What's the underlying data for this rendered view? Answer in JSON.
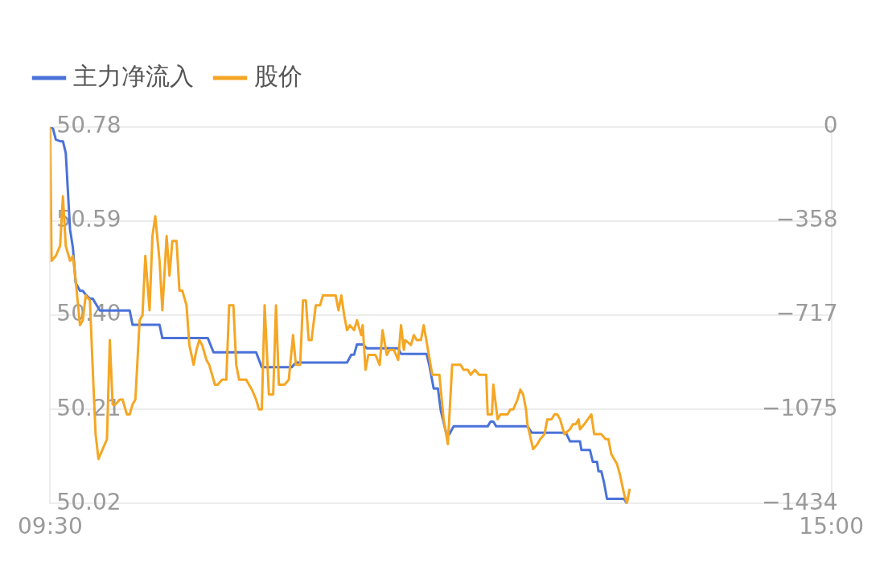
{
  "chart_data": {
    "type": "line",
    "xlim": [
      9.5,
      15
    ],
    "xticks": [
      {
        "value": 9.5,
        "label": "09:30"
      },
      {
        "value": 15,
        "label": "15:00"
      }
    ],
    "ylim": [
      50.02,
      50.78
    ],
    "yticks": [
      {
        "value": 50.02,
        "label": "50.02"
      },
      {
        "value": 50.21,
        "label": "50.21"
      },
      {
        "value": 50.4,
        "label": "50.40"
      },
      {
        "value": 50.59,
        "label": "50.59"
      },
      {
        "value": 50.78,
        "label": "50.78"
      }
    ],
    "y2lim": [
      -1434,
      0
    ],
    "y2ticks": [
      {
        "value": -1434,
        "label": "−1434"
      },
      {
        "value": -1075.5,
        "label": "−1075"
      },
      {
        "value": -717,
        "label": "−717"
      },
      {
        "value": -358.5,
        "label": "−358"
      },
      {
        "value": 0,
        "label": "0"
      }
    ],
    "grid": "y",
    "legend": "top left",
    "series": [
      {
        "name": "主力净流入",
        "color": "#4a72d9",
        "axis": "y2",
        "x": [
          9.5,
          9.52,
          9.54,
          9.57,
          9.59,
          9.61,
          9.64,
          9.66,
          9.68,
          9.71,
          9.73,
          9.75,
          9.78,
          9.8,
          9.82,
          9.85,
          10.06,
          10.08,
          10.27,
          10.29,
          10.61,
          10.65,
          10.95,
          10.99,
          11.2,
          11.23,
          11.59,
          11.62,
          11.64,
          11.66,
          11.7,
          11.73,
          11.95,
          11.97,
          12.15,
          12.17,
          12.2,
          12.23,
          12.25,
          12.29,
          12.31,
          12.34,
          12.58,
          12.6,
          12.62,
          12.64,
          12.86,
          12.89,
          13.13,
          13.16,
          13.23,
          13.24,
          13.3,
          13.32,
          13.35,
          13.36,
          13.38,
          13.4,
          13.42,
          13.54,
          13.56
        ],
        "values": [
          0,
          -6,
          -48,
          -54,
          -54,
          -99,
          -390,
          -459,
          -594,
          -624,
          -624,
          -639,
          -654,
          -654,
          -672,
          -699,
          -699,
          -753,
          -753,
          -804,
          -804,
          -858,
          -858,
          -915,
          -915,
          -897,
          -897,
          -867,
          -867,
          -828,
          -828,
          -843,
          -843,
          -864,
          -864,
          -909,
          -996,
          -996,
          -1080,
          -1170,
          -1170,
          -1140,
          -1140,
          -1122,
          -1122,
          -1140,
          -1140,
          -1164,
          -1164,
          -1197,
          -1197,
          -1230,
          -1230,
          -1275,
          -1275,
          -1311,
          -1311,
          -1356,
          -1416,
          -1416,
          -1434
        ]
      },
      {
        "name": "股价",
        "color": "#f5a623",
        "x": [
          9.5,
          9.51,
          9.54,
          9.57,
          9.59,
          9.61,
          9.64,
          9.66,
          9.68,
          9.71,
          9.73,
          9.75,
          9.78,
          9.8,
          9.82,
          9.84,
          9.87,
          9.9,
          9.92,
          9.94,
          9.96,
          9.99,
          10.01,
          10.04,
          10.06,
          10.08,
          10.1,
          10.13,
          10.15,
          10.17,
          10.2,
          10.22,
          10.24,
          10.27,
          10.29,
          10.32,
          10.34,
          10.36,
          10.39,
          10.41,
          10.43,
          10.46,
          10.48,
          10.51,
          10.53,
          10.55,
          10.57,
          10.6,
          10.62,
          10.64,
          10.66,
          10.68,
          10.71,
          10.74,
          10.76,
          10.79,
          10.81,
          10.83,
          10.88,
          10.9,
          10.92,
          10.95,
          10.97,
          10.99,
          11.01,
          11.04,
          11.07,
          11.09,
          11.11,
          11.13,
          11.15,
          11.18,
          11.21,
          11.23,
          11.26,
          11.28,
          11.3,
          11.32,
          11.34,
          11.37,
          11.4,
          11.42,
          11.51,
          11.53,
          11.55,
          11.57,
          11.59,
          11.61,
          11.64,
          11.66,
          11.69,
          11.7,
          11.72,
          11.74,
          11.79,
          11.82,
          11.84,
          11.87,
          11.89,
          11.92,
          11.95,
          11.97,
          11.99,
          12.0,
          12.04,
          12.06,
          12.08,
          12.11,
          12.13,
          12.16,
          12.19,
          12.24,
          12.27,
          12.3,
          12.33,
          12.39,
          12.41,
          12.44,
          12.46,
          12.49,
          12.52,
          12.57,
          12.58,
          12.61,
          12.62,
          12.65,
          12.67,
          12.72,
          12.74,
          12.76,
          12.79,
          12.81,
          12.83,
          12.85,
          12.86,
          12.9,
          12.93,
          12.95,
          12.98,
          13.0,
          13.03,
          13.05,
          13.07,
          13.09,
          13.12,
          13.16,
          13.18,
          13.2,
          13.22,
          13.23,
          13.26,
          13.31,
          13.33,
          13.38,
          13.41,
          13.43,
          13.45,
          13.47,
          13.49,
          13.51,
          13.54,
          13.56,
          13.58
        ],
        "values": [
          50.78,
          50.51,
          50.52,
          50.54,
          50.64,
          50.54,
          50.51,
          50.52,
          50.47,
          50.38,
          50.39,
          50.44,
          50.43,
          50.29,
          50.16,
          50.11,
          50.13,
          50.15,
          50.35,
          50.22,
          50.22,
          50.23,
          50.23,
          50.2,
          50.2,
          50.22,
          50.23,
          50.39,
          50.4,
          50.52,
          50.41,
          50.56,
          50.6,
          50.51,
          50.41,
          50.56,
          50.48,
          50.55,
          50.55,
          50.45,
          50.45,
          50.42,
          50.34,
          50.3,
          50.33,
          50.35,
          50.34,
          50.31,
          50.3,
          50.28,
          50.26,
          50.26,
          50.27,
          50.27,
          50.42,
          50.42,
          50.3,
          50.27,
          50.27,
          50.26,
          50.25,
          50.23,
          50.21,
          50.21,
          50.42,
          50.24,
          50.24,
          50.42,
          50.26,
          50.26,
          50.26,
          50.27,
          50.36,
          50.3,
          50.3,
          50.43,
          50.43,
          50.35,
          50.35,
          50.42,
          50.42,
          50.44,
          50.44,
          50.41,
          50.44,
          50.4,
          50.37,
          50.38,
          50.37,
          50.39,
          50.36,
          50.38,
          50.29,
          50.32,
          50.32,
          50.3,
          50.37,
          50.32,
          50.33,
          50.33,
          50.31,
          50.38,
          50.33,
          50.35,
          50.34,
          50.36,
          50.35,
          50.35,
          50.38,
          50.33,
          50.28,
          50.28,
          50.19,
          50.14,
          50.3,
          50.3,
          50.29,
          50.29,
          50.28,
          50.29,
          50.28,
          50.28,
          50.2,
          50.2,
          50.26,
          50.19,
          50.2,
          50.2,
          50.21,
          50.21,
          50.23,
          50.25,
          50.24,
          50.21,
          50.18,
          50.13,
          50.14,
          50.15,
          50.16,
          50.19,
          50.19,
          50.2,
          50.2,
          50.19,
          50.16,
          50.17,
          50.18,
          50.18,
          50.19,
          50.17,
          50.18,
          50.2,
          50.16,
          50.16,
          50.15,
          50.15,
          50.12,
          50.11,
          50.1,
          50.08,
          50.04,
          50.02,
          50.05
        ]
      }
    ]
  }
}
